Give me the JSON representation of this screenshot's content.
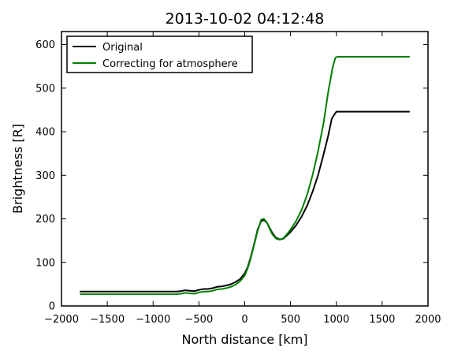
{
  "chart_data": {
    "type": "line",
    "title": "2013-10-02 04:12:48",
    "xlabel": "North distance [km]",
    "ylabel": "Brightness [R]",
    "xlim": [
      -2000,
      2000
    ],
    "ylim": [
      0,
      630
    ],
    "xticks": [
      -2000,
      -1500,
      -1000,
      -500,
      0,
      500,
      1000,
      1500,
      2000
    ],
    "xtick_labels": [
      "−2000",
      "−1500",
      "−1000",
      "−500",
      "0",
      "500",
      "1000",
      "1500",
      "2000"
    ],
    "yticks": [
      0,
      100,
      200,
      300,
      400,
      500,
      600
    ],
    "ytick_labels": [
      "0",
      "100",
      "200",
      "300",
      "400",
      "500",
      "600"
    ],
    "legend": "top-left",
    "grid": false,
    "series": [
      {
        "name": "Original",
        "color": "#000000",
        "x": [
          -1800,
          -1500,
          -1000,
          -750,
          -700,
          -650,
          -600,
          -550,
          -500,
          -450,
          -400,
          -350,
          -300,
          -250,
          -200,
          -150,
          -100,
          -50,
          0,
          30,
          60,
          100,
          140,
          180,
          210,
          240,
          270,
          300,
          340,
          380,
          420,
          450,
          500,
          560,
          620,
          680,
          740,
          800,
          860,
          910,
          950,
          980,
          1000,
          1100,
          1300,
          1500,
          1800
        ],
        "y": [
          33,
          33,
          33,
          33,
          34,
          36,
          35,
          34,
          37,
          39,
          39,
          41,
          44,
          45,
          47,
          50,
          55,
          62,
          75,
          88,
          108,
          140,
          175,
          195,
          197,
          192,
          180,
          168,
          157,
          153,
          154,
          160,
          170,
          185,
          205,
          230,
          262,
          300,
          348,
          390,
          430,
          440,
          446,
          446,
          446,
          446,
          446
        ]
      },
      {
        "name": "Correcting for atmosphere",
        "color": "#008000",
        "x": [
          -1800,
          -1500,
          -1000,
          -750,
          -700,
          -650,
          -600,
          -550,
          -500,
          -450,
          -400,
          -350,
          -300,
          -250,
          -200,
          -150,
          -100,
          -50,
          0,
          30,
          60,
          100,
          140,
          180,
          210,
          240,
          270,
          300,
          340,
          380,
          420,
          450,
          500,
          560,
          620,
          680,
          740,
          800,
          860,
          910,
          960,
          990,
          1010,
          1100,
          1300,
          1500,
          1800
        ],
        "y": [
          27,
          27,
          27,
          27,
          28,
          30,
          29,
          28,
          31,
          33,
          33,
          35,
          38,
          39,
          41,
          44,
          49,
          57,
          70,
          85,
          105,
          138,
          172,
          198,
          200,
          192,
          178,
          165,
          155,
          152,
          155,
          162,
          175,
          195,
          220,
          255,
          300,
          355,
          420,
          490,
          548,
          570,
          572,
          572,
          572,
          572,
          572
        ]
      }
    ]
  }
}
